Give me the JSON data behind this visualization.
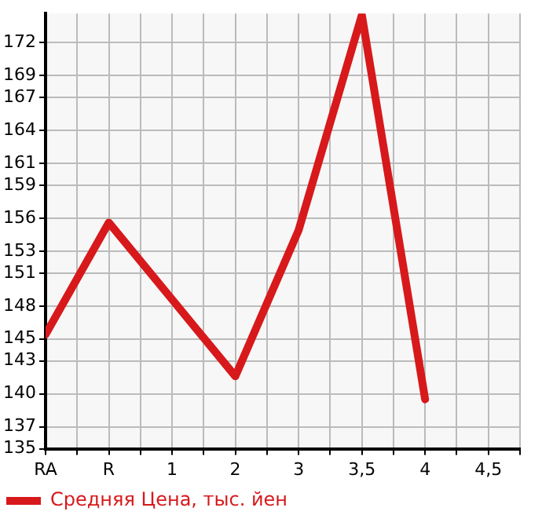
{
  "chart_data": {
    "type": "line",
    "categories": [
      "RA",
      "R",
      "1",
      "2",
      "3",
      "3,5",
      "4",
      "4,5"
    ],
    "series": [
      {
        "name": "Средняя Цена, тыс. йен",
        "color": "#d7191c",
        "values": [
          145.4,
          155.6,
          148.6,
          141.6,
          154.9,
          174.5,
          139.5,
          null
        ]
      }
    ],
    "ylim": [
      135,
      174.64
    ],
    "yticks": [
      135,
      137,
      140,
      143,
      145,
      148,
      151,
      153,
      156,
      159,
      161,
      164,
      167,
      169,
      172
    ],
    "grid": true,
    "legend": "bottom left",
    "marker": "none",
    "line_style": "solid"
  }
}
